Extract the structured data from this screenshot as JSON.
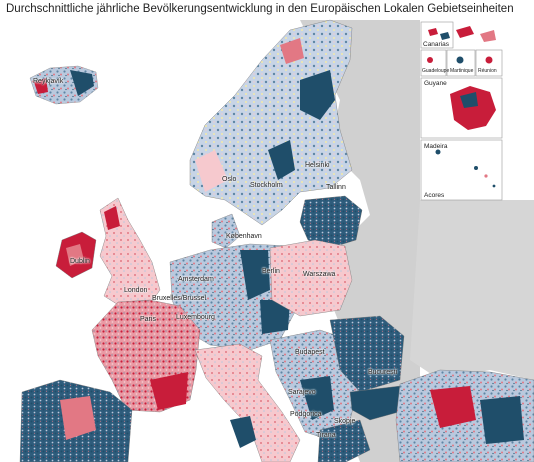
{
  "title": "Durchschnittliche jährliche Bevölkerungsentwicklung in den Europäischen Lokalen Gebietseinheiten",
  "colors": {
    "sea": "#ffffff",
    "non_eu_land": "#d0d0d0",
    "strong_decline": "#1f4e6a",
    "decline": "#5e86a5",
    "slight_decline": "#b9c9de",
    "slight_growth": "#f6c9ce",
    "growth": "#e27884",
    "strong_growth": "#c81d3a",
    "no_data": "#f3e9a8"
  },
  "cities": [
    "Reykjavík",
    "Helsinki",
    "Oslo",
    "Stockholm",
    "Tallinn",
    "København",
    "Dublin",
    "London",
    "Amsterdam",
    "Bruxelles/Brussel",
    "Luxembourg",
    "Berlin",
    "Warszawa",
    "Paris",
    "Budapest",
    "București",
    "Sarajevo",
    "Podgorica",
    "Skopje",
    "Tirana"
  ],
  "insets": [
    "Canarias",
    "Guadeloupe",
    "Martinique",
    "Réunion",
    "Guyane",
    "Madeira",
    "Acores"
  ]
}
